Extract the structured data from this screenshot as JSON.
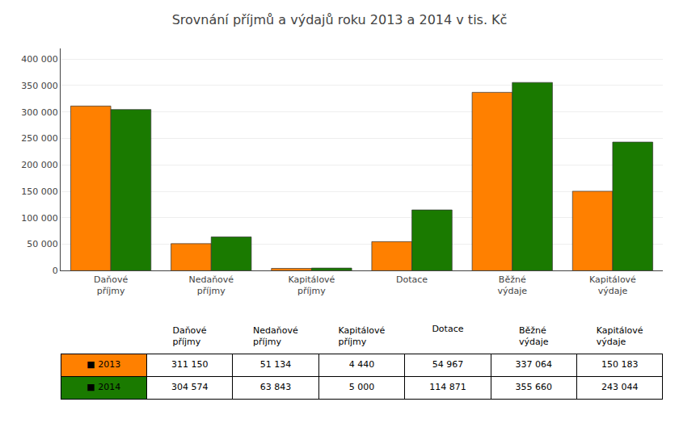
{
  "chart_data": {
    "type": "bar",
    "title": "Srovnání příjmů a výdajů roku 2013 a 2014 v tis. Kč",
    "categories": [
      "Daňové\npříjmy",
      "Nedaňové\npříjmy",
      "Kapitálové\npříjmy",
      "Dotace",
      "Běžné\nvýdaje",
      "Kapitálové\nvýdaje"
    ],
    "series": [
      {
        "name": "■ 2013",
        "color": "#FF8000",
        "values": [
          311150,
          51134,
          4440,
          54967,
          337064,
          150183
        ],
        "value_labels": [
          "311 150",
          "51 134",
          "4 440",
          "54 967",
          "337 064",
          "150 183"
        ]
      },
      {
        "name": "■ 2014",
        "color": "#1A7A00",
        "values": [
          304574,
          63843,
          5000,
          114871,
          355660,
          243044
        ],
        "value_labels": [
          "304 574",
          "63 843",
          "5 000",
          "114 871",
          "355 660",
          "243 044"
        ]
      }
    ],
    "ylim": [
      0,
      420000
    ],
    "yticks": [
      0,
      {
        "value": 50000,
        "label": "50 000"
      },
      {
        "value": 100000,
        "label": "100 000"
      },
      {
        "value": 150000,
        "label": "150 000"
      },
      {
        "value": 200000,
        "label": "200 000"
      },
      {
        "value": 250000,
        "label": "250 000"
      },
      {
        "value": 300000,
        "label": "300 000"
      },
      {
        "value": 350000,
        "label": "350 000"
      },
      {
        "value": 400000,
        "label": "400 000"
      }
    ],
    "grid": true
  }
}
